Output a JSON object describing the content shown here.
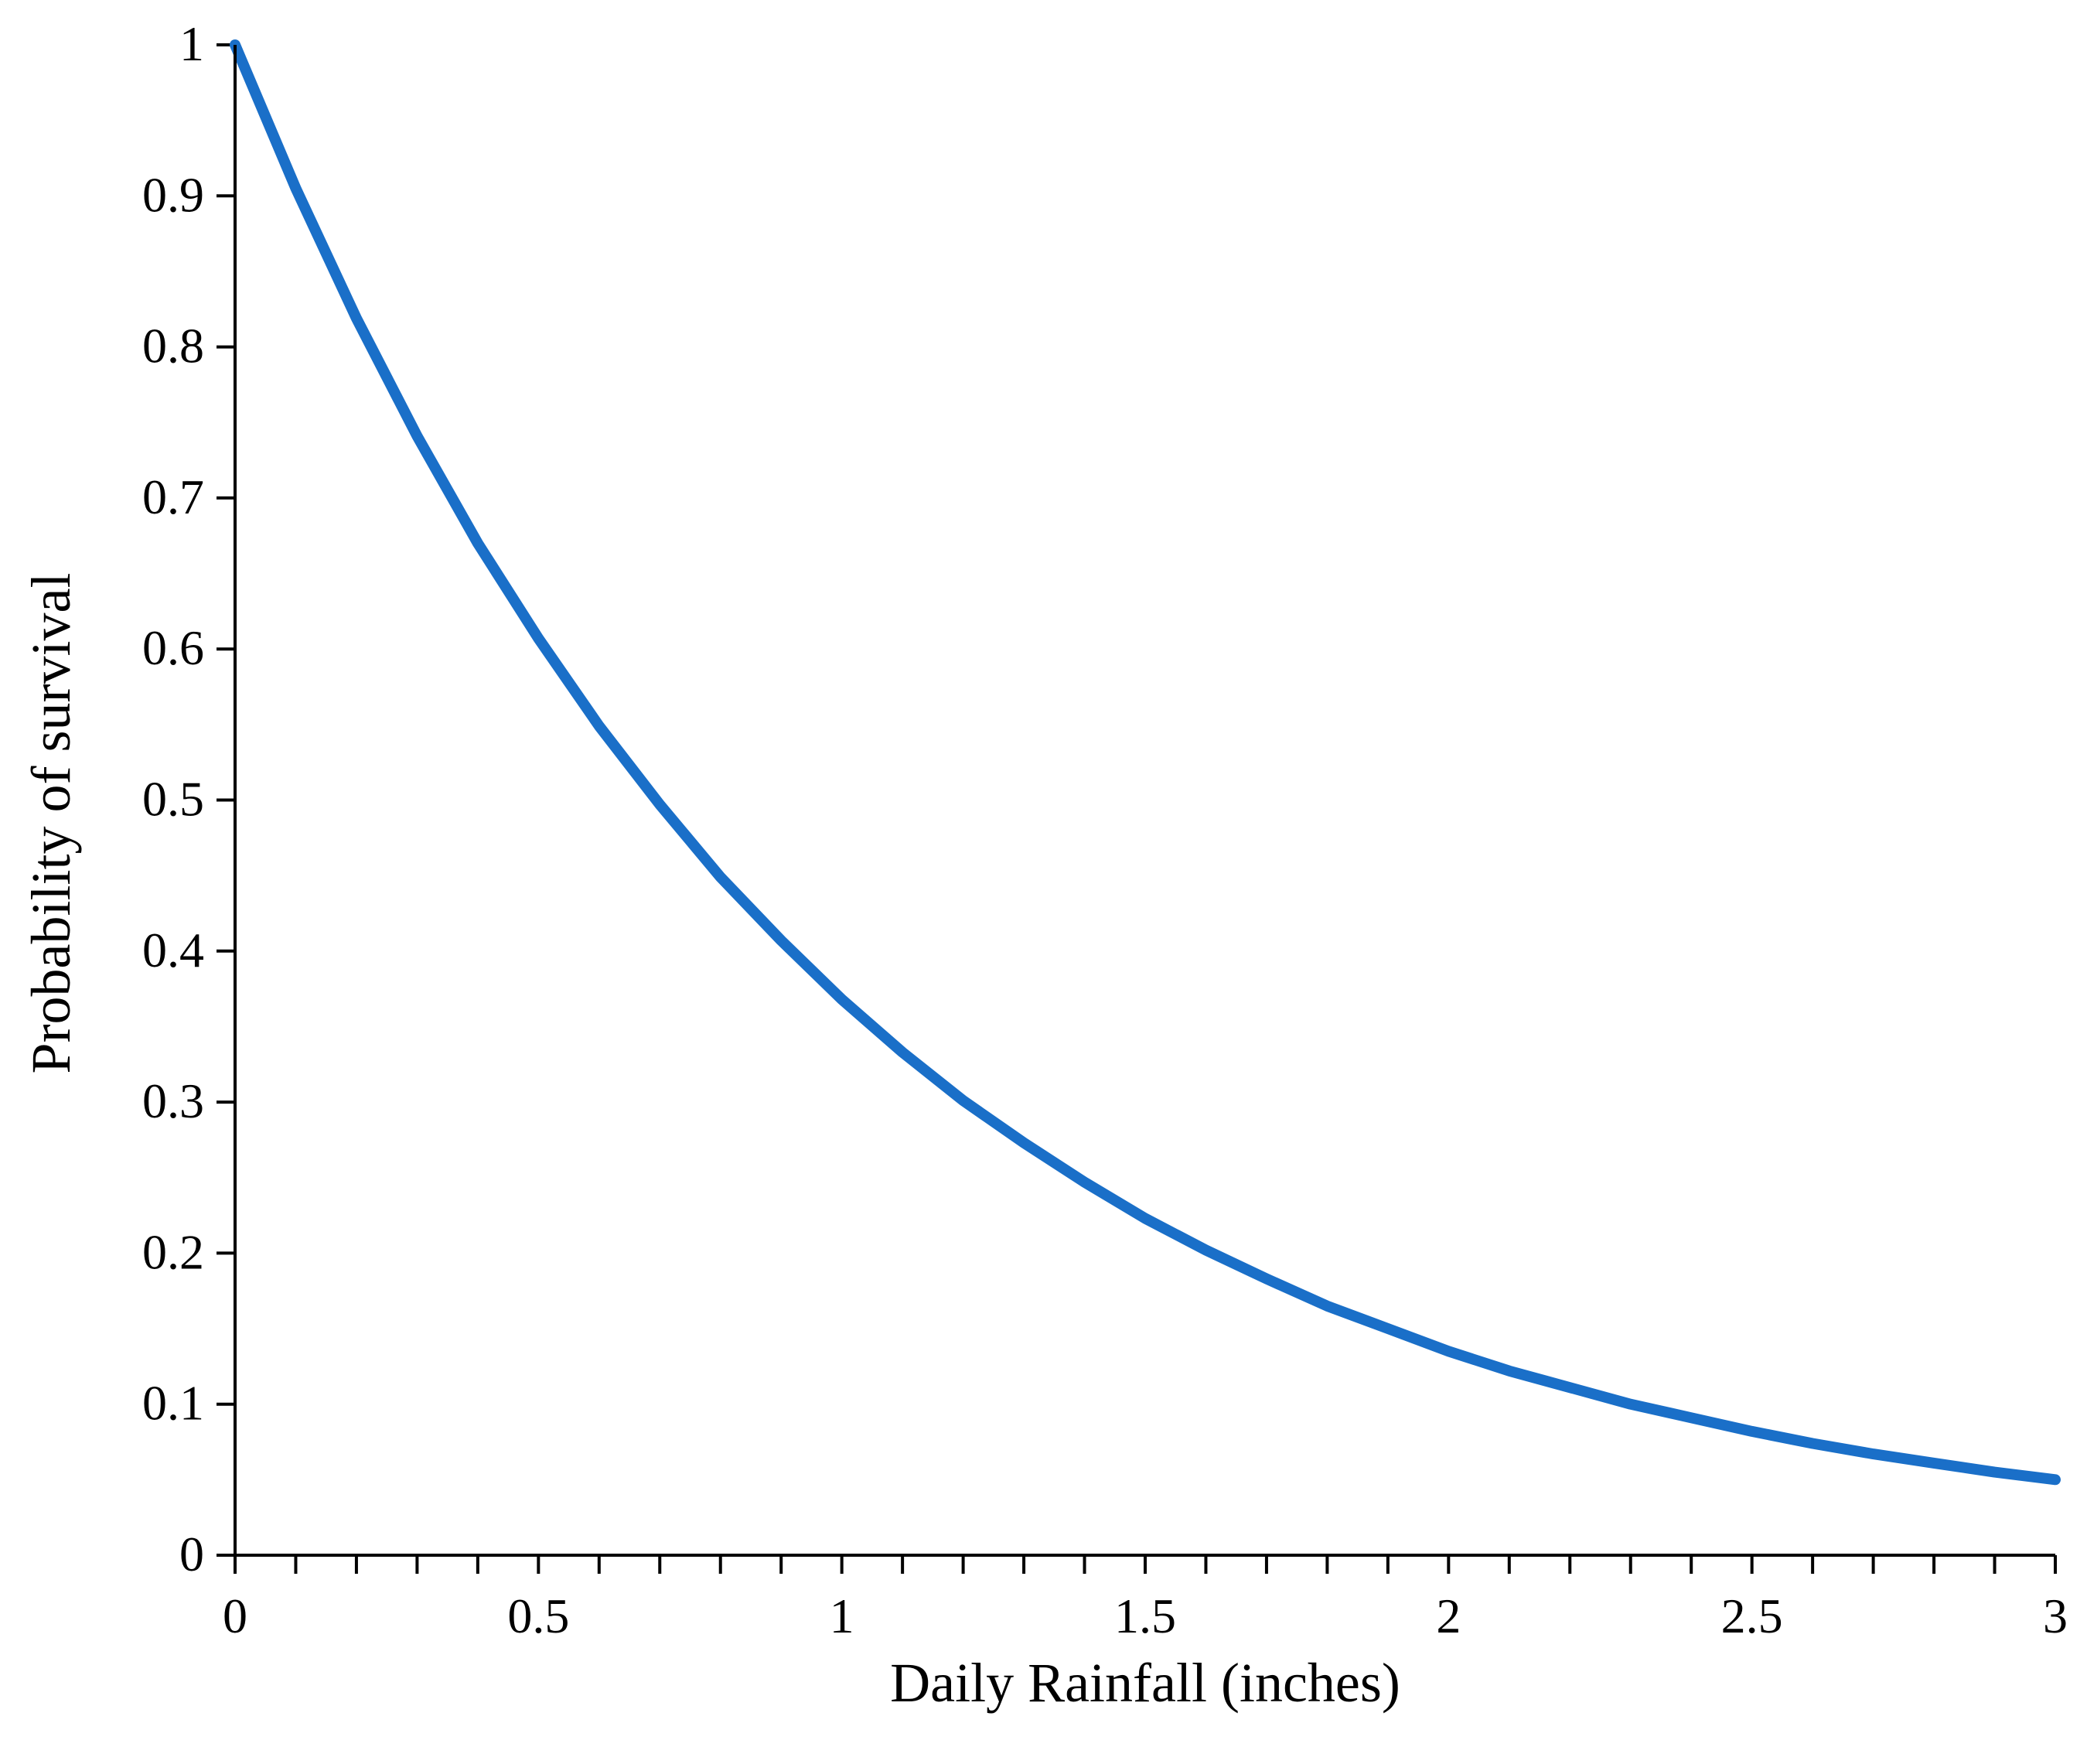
{
  "chart_data": {
    "type": "line",
    "title": "",
    "xlabel": "Daily Rainfall (inches)",
    "ylabel": "Probability of survival",
    "xlim": [
      0,
      3
    ],
    "ylim": [
      0,
      1
    ],
    "grid": false,
    "legend": "none",
    "x_ticks": [
      0,
      0.5,
      1,
      1.5,
      2,
      2.5,
      3
    ],
    "x_tick_labels": [
      "0",
      "0.5",
      "1",
      "1.5",
      "2",
      "2.5",
      "3"
    ],
    "x_minor_step": 0.1,
    "y_ticks": [
      0,
      0.1,
      0.2,
      0.3,
      0.4,
      0.5,
      0.6,
      0.7,
      0.8,
      0.9,
      1
    ],
    "y_tick_labels": [
      "0",
      "0.1",
      "0.2",
      "0.3",
      "0.4",
      "0.5",
      "0.6",
      "0.7",
      "0.8",
      "0.9",
      "1"
    ],
    "series": [
      {
        "name": "Probability of survival",
        "color": "#1a6fc8",
        "x": [
          0,
          0.1,
          0.2,
          0.3,
          0.4,
          0.5,
          0.6,
          0.7,
          0.8,
          0.9,
          1.0,
          1.1,
          1.2,
          1.3,
          1.4,
          1.5,
          1.6,
          1.7,
          1.8,
          1.9,
          2.0,
          2.1,
          2.2,
          2.3,
          2.4,
          2.5,
          2.6,
          2.7,
          2.8,
          2.9,
          3.0
        ],
        "y": [
          1.0,
          0.905,
          0.819,
          0.741,
          0.67,
          0.607,
          0.549,
          0.497,
          0.449,
          0.407,
          0.368,
          0.333,
          0.301,
          0.273,
          0.247,
          0.223,
          0.202,
          0.183,
          0.165,
          0.15,
          0.135,
          0.122,
          0.111,
          0.1,
          0.091,
          0.082,
          0.074,
          0.067,
          0.061,
          0.055,
          0.05
        ]
      }
    ]
  }
}
